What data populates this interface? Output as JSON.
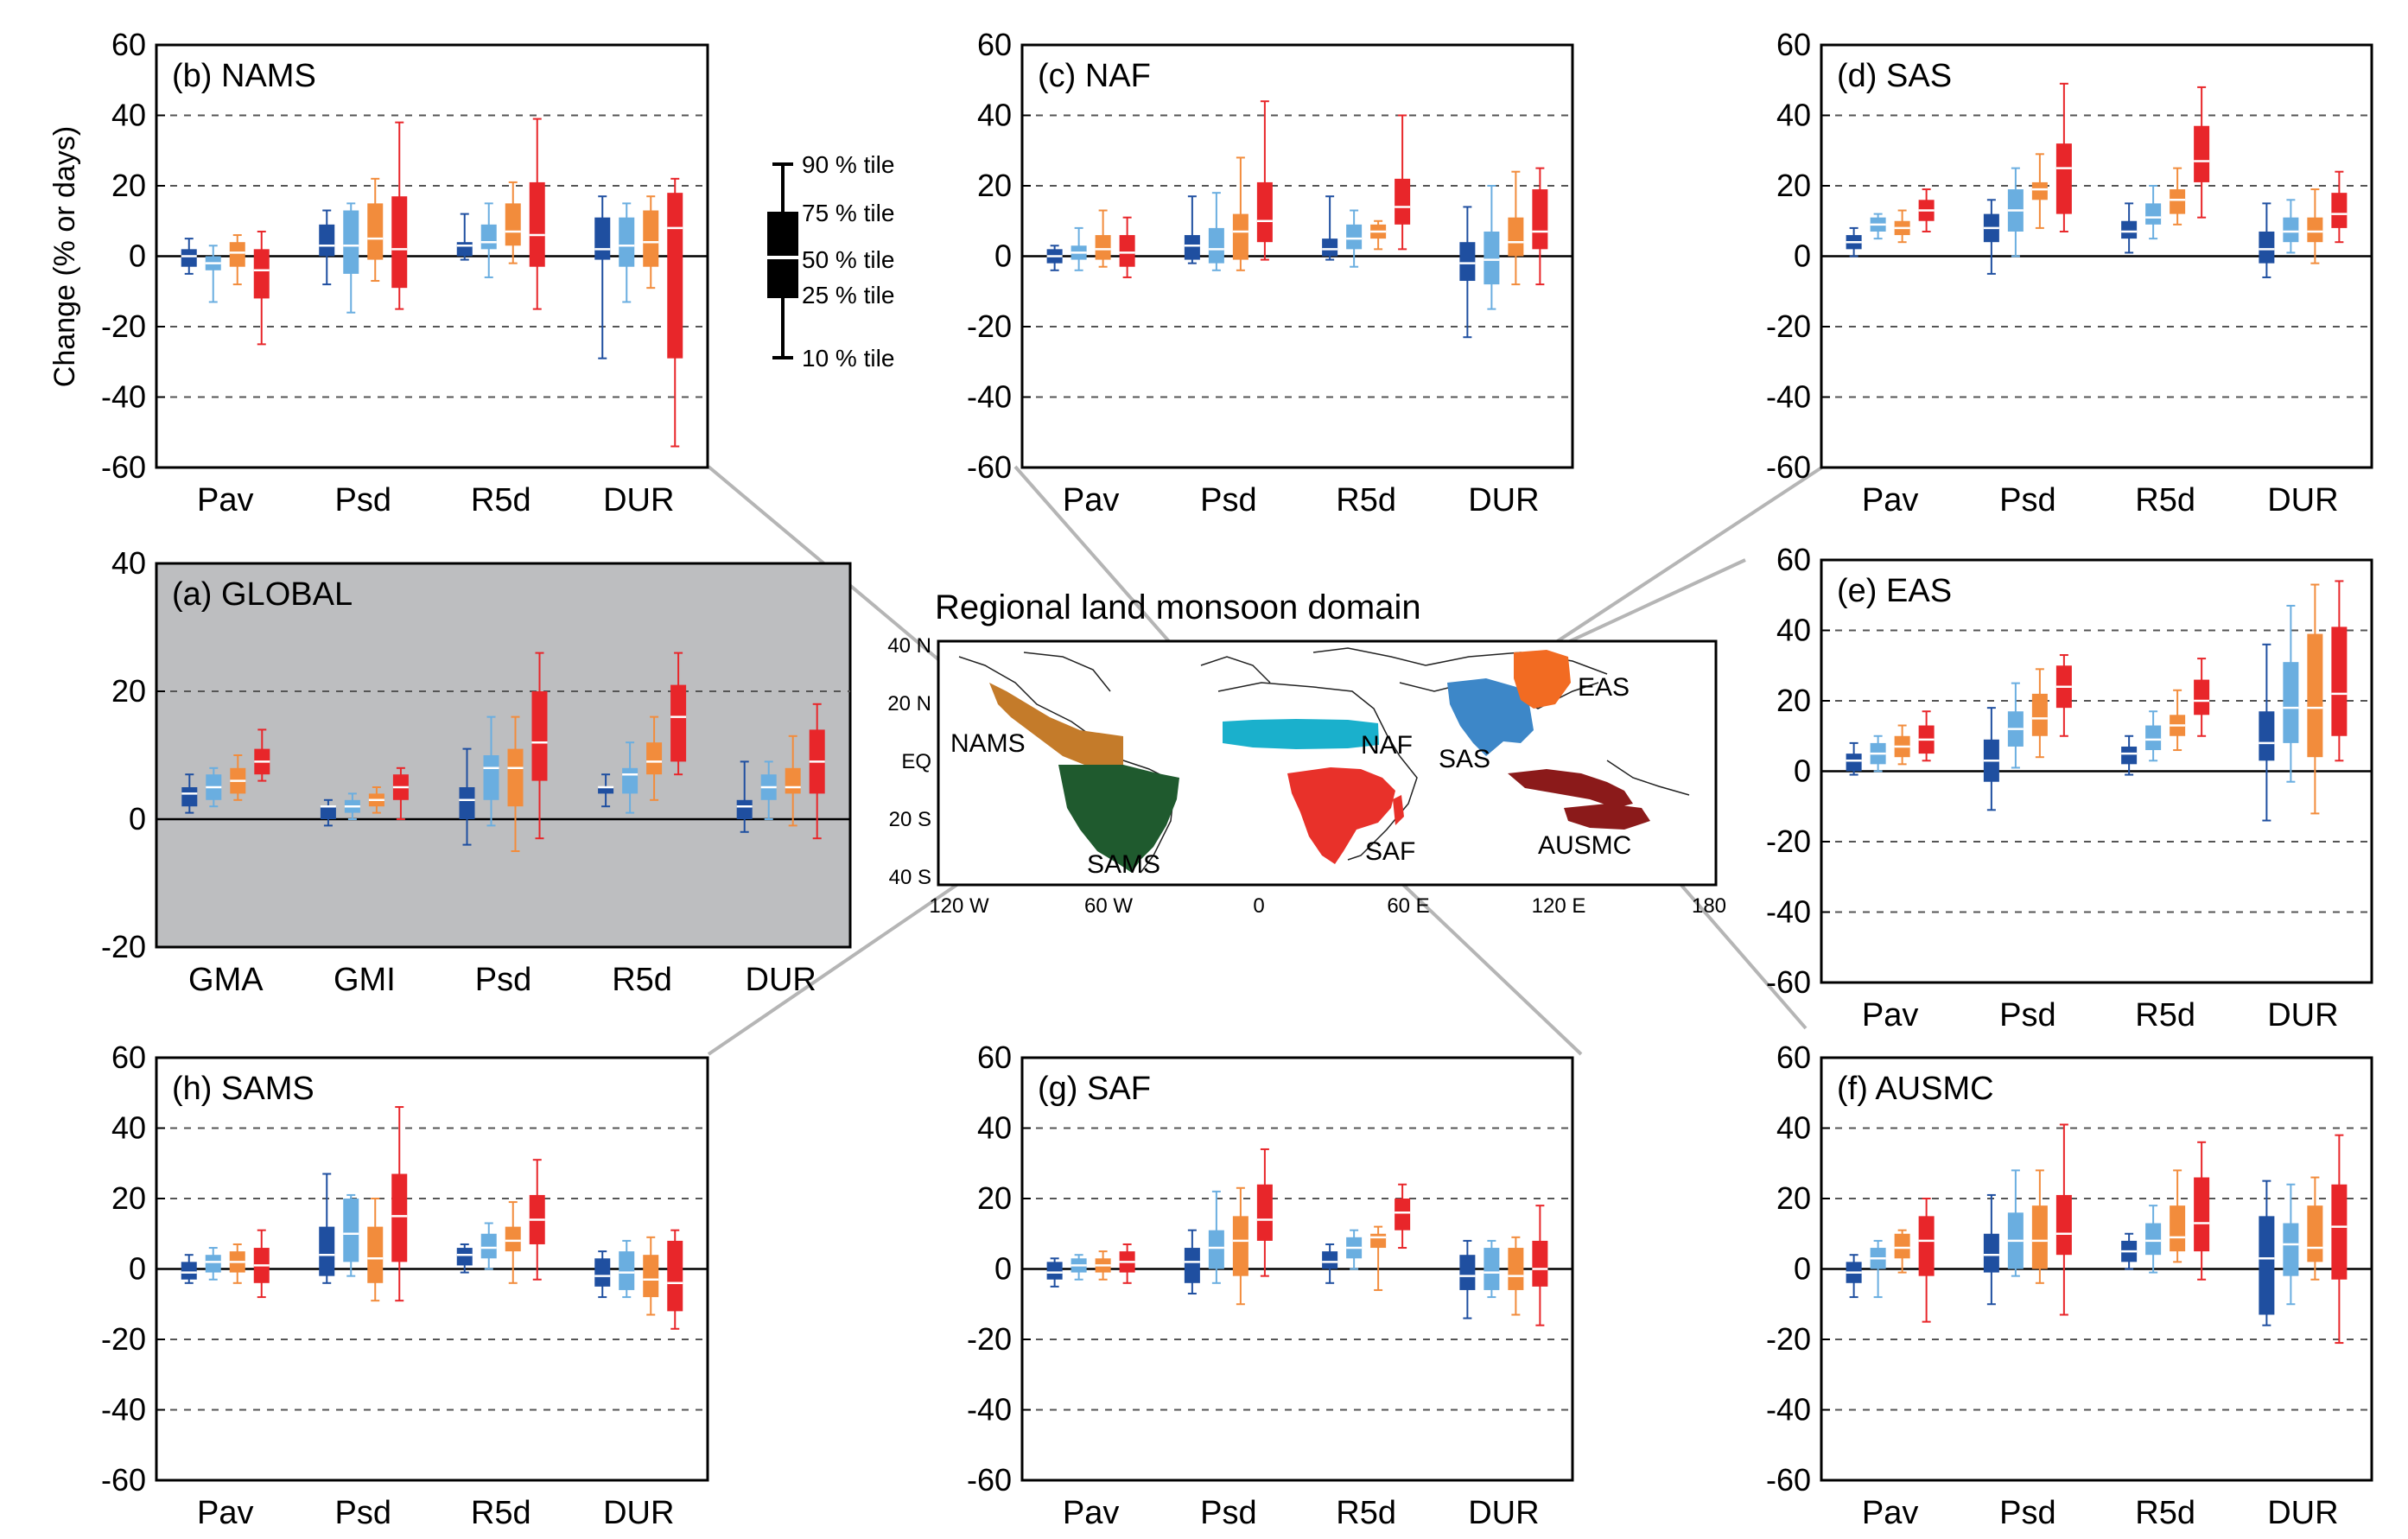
{
  "y_axis_label": "Change (% or days)",
  "map": {
    "title": "Regional land monsoon domain",
    "lat_labels": [
      "40 N",
      "20 N",
      "EQ",
      "20 S",
      "40 S"
    ],
    "lon_labels": [
      "120 W",
      "60 W",
      "0",
      "60 E",
      "120 E",
      "180"
    ],
    "regions": [
      {
        "label": "NAMS",
        "color": "#c47b2a"
      },
      {
        "label": "SAMS",
        "color": "#1f5a2e"
      },
      {
        "label": "NAF",
        "color": "#1ab0cc"
      },
      {
        "label": "SAF",
        "color": "#e8312a"
      },
      {
        "label": "SAS",
        "color": "#3d87c8"
      },
      {
        "label": "EAS",
        "color": "#f26b22"
      },
      {
        "label": "AUSMC",
        "color": "#8b1a1a"
      }
    ]
  },
  "legend": {
    "labels": [
      "90 % tile",
      "75 % tile",
      "50 % tile",
      "25 % tile",
      "10 % tile"
    ]
  },
  "series_colors": [
    "#1f4fa0",
    "#6aaee0",
    "#f28c3c",
    "#e8262a"
  ],
  "chart_data": [
    {
      "id": "NAMS",
      "type": "box",
      "title": "(b) NAMS",
      "ylim": [
        -60,
        60
      ],
      "yticks": [
        "60",
        "40",
        "20",
        "0",
        "-20",
        "-40",
        "-60"
      ],
      "categories": [
        "Pav",
        "Psd",
        "R5d",
        "DUR"
      ],
      "boxes": [
        [
          [
            -5,
            -3,
            0,
            2,
            5
          ],
          [
            -13,
            -4,
            -2,
            0,
            3
          ],
          [
            -8,
            -3,
            1,
            4,
            6
          ],
          [
            -25,
            -12,
            -4,
            2,
            7
          ]
        ],
        [
          [
            -8,
            0,
            3,
            9,
            13
          ],
          [
            -16,
            -5,
            3,
            13,
            15
          ],
          [
            -7,
            -1,
            5,
            15,
            22
          ],
          [
            -15,
            -9,
            2,
            17,
            38
          ]
        ],
        [
          [
            -1,
            0,
            3,
            4,
            12
          ],
          [
            -6,
            2,
            4,
            9,
            15
          ],
          [
            -2,
            3,
            7,
            15,
            21
          ],
          [
            -15,
            -3,
            6,
            21,
            39
          ]
        ],
        [
          [
            -29,
            -1,
            2,
            11,
            17
          ],
          [
            -13,
            -3,
            3,
            11,
            15
          ],
          [
            -9,
            -3,
            4,
            13,
            17
          ],
          [
            -54,
            -29,
            8,
            18,
            22
          ]
        ]
      ]
    },
    {
      "id": "NAF",
      "type": "box",
      "title": "(c) NAF",
      "ylim": [
        -60,
        60
      ],
      "yticks": [
        "60",
        "40",
        "20",
        "0",
        "-20",
        "-40",
        "-60"
      ],
      "categories": [
        "Pav",
        "Psd",
        "R5d",
        "DUR"
      ],
      "boxes": [
        [
          [
            -4,
            -2,
            0,
            2,
            3
          ],
          [
            -4,
            -1,
            1,
            3,
            8
          ],
          [
            -3,
            -1,
            2,
            6,
            13
          ],
          [
            -6,
            -3,
            1,
            6,
            11
          ]
        ],
        [
          [
            -2,
            -1,
            3,
            6,
            17
          ],
          [
            -4,
            -2,
            2,
            8,
            18
          ],
          [
            -4,
            -1,
            7,
            12,
            28
          ],
          [
            -1,
            4,
            10,
            21,
            44
          ]
        ],
        [
          [
            -1,
            0,
            2,
            5,
            17
          ],
          [
            -3,
            2,
            5,
            9,
            13
          ],
          [
            2,
            5,
            7,
            9,
            10
          ],
          [
            2,
            9,
            14,
            22,
            40
          ]
        ],
        [
          [
            -23,
            -7,
            -2,
            4,
            14
          ],
          [
            -15,
            -8,
            -1,
            7,
            20
          ],
          [
            -8,
            0,
            4,
            11,
            24
          ],
          [
            -8,
            2,
            7,
            19,
            25
          ]
        ]
      ]
    },
    {
      "id": "SAS",
      "type": "box",
      "title": "(d) SAS",
      "ylim": [
        -60,
        60
      ],
      "yticks": [
        "60",
        "40",
        "20",
        "0",
        "-20",
        "-40",
        "-60"
      ],
      "categories": [
        "Pav",
        "Psd",
        "R5d",
        "DUR"
      ],
      "boxes": [
        [
          [
            0,
            2,
            4,
            6,
            8
          ],
          [
            5,
            7,
            9,
            11,
            12
          ],
          [
            4,
            6,
            8,
            10,
            13
          ],
          [
            7,
            10,
            13,
            16,
            19
          ]
        ],
        [
          [
            -5,
            4,
            8,
            12,
            16
          ],
          [
            0,
            7,
            13,
            19,
            25
          ],
          [
            8,
            16,
            19,
            21,
            29
          ],
          [
            7,
            12,
            25,
            32,
            49
          ]
        ],
        [
          [
            1,
            5,
            7,
            10,
            15
          ],
          [
            5,
            9,
            11,
            15,
            20
          ],
          [
            9,
            12,
            16,
            19,
            25
          ],
          [
            11,
            21,
            27,
            37,
            48
          ]
        ],
        [
          [
            -6,
            -2,
            2,
            7,
            15
          ],
          [
            1,
            4,
            7,
            11,
            16
          ],
          [
            -2,
            4,
            7,
            11,
            19
          ],
          [
            4,
            8,
            12,
            18,
            24
          ]
        ]
      ]
    },
    {
      "id": "EAS",
      "type": "box",
      "title": "(e) EAS",
      "ylim": [
        -60,
        60
      ],
      "yticks": [
        "60",
        "40",
        "20",
        "0",
        "-20",
        "-40",
        "-60"
      ],
      "categories": [
        "Pav",
        "Psd",
        "R5d",
        "DUR"
      ],
      "boxes": [
        [
          [
            -1,
            0,
            3,
            5,
            8
          ],
          [
            0,
            2,
            5,
            8,
            10
          ],
          [
            2,
            4,
            7,
            10,
            13
          ],
          [
            3,
            5,
            9,
            13,
            17
          ]
        ],
        [
          [
            -11,
            -3,
            3,
            9,
            18
          ],
          [
            1,
            7,
            12,
            17,
            25
          ],
          [
            4,
            10,
            15,
            22,
            29
          ],
          [
            10,
            18,
            24,
            30,
            33
          ]
        ],
        [
          [
            -1,
            2,
            5,
            7,
            10
          ],
          [
            3,
            6,
            9,
            13,
            17
          ],
          [
            6,
            10,
            13,
            16,
            23
          ],
          [
            10,
            16,
            20,
            26,
            32
          ]
        ],
        [
          [
            -14,
            3,
            8,
            17,
            36
          ],
          [
            -3,
            8,
            18,
            31,
            47
          ],
          [
            -12,
            4,
            18,
            39,
            53
          ],
          [
            3,
            10,
            22,
            41,
            54
          ]
        ]
      ]
    },
    {
      "id": "AUSMC",
      "type": "box",
      "title": "(f) AUSMC",
      "ylim": [
        -60,
        60
      ],
      "yticks": [
        "60",
        "40",
        "20",
        "0",
        "-20",
        "-40",
        "-60"
      ],
      "categories": [
        "Pav",
        "Psd",
        "R5d",
        "DUR"
      ],
      "boxes": [
        [
          [
            -8,
            -4,
            -1,
            2,
            4
          ],
          [
            -8,
            0,
            3,
            6,
            8
          ],
          [
            -1,
            3,
            6,
            10,
            11
          ],
          [
            -15,
            -2,
            8,
            15,
            20
          ]
        ],
        [
          [
            -10,
            -1,
            4,
            10,
            21
          ],
          [
            -2,
            0,
            8,
            16,
            28
          ],
          [
            -4,
            0,
            8,
            18,
            28
          ],
          [
            -13,
            4,
            10,
            21,
            41
          ]
        ],
        [
          [
            0,
            2,
            5,
            8,
            10
          ],
          [
            -1,
            4,
            8,
            13,
            18
          ],
          [
            2,
            5,
            9,
            18,
            28
          ],
          [
            -3,
            5,
            13,
            26,
            36
          ]
        ],
        [
          [
            -16,
            -13,
            3,
            15,
            25
          ],
          [
            -10,
            -2,
            7,
            13,
            24
          ],
          [
            -3,
            2,
            6,
            18,
            26
          ],
          [
            -21,
            -3,
            12,
            24,
            38
          ]
        ]
      ]
    },
    {
      "id": "SAF",
      "type": "box",
      "title": "(g) SAF",
      "ylim": [
        -60,
        60
      ],
      "yticks": [
        "60",
        "40",
        "20",
        "0",
        "-20",
        "-40",
        "-60"
      ],
      "categories": [
        "Pav",
        "Psd",
        "R5d",
        "DUR"
      ],
      "boxes": [
        [
          [
            -5,
            -3,
            -1,
            2,
            3
          ],
          [
            -3,
            -1,
            1,
            3,
            4
          ],
          [
            -3,
            -1,
            1,
            3,
            5
          ],
          [
            -4,
            -1,
            2,
            5,
            7
          ]
        ],
        [
          [
            -7,
            -4,
            2,
            6,
            11
          ],
          [
            -4,
            0,
            6,
            11,
            22
          ],
          [
            -10,
            -2,
            8,
            15,
            23
          ],
          [
            -2,
            8,
            14,
            24,
            34
          ]
        ],
        [
          [
            -4,
            0,
            2,
            5,
            7
          ],
          [
            0,
            3,
            6,
            9,
            11
          ],
          [
            -6,
            6,
            9,
            10,
            12
          ],
          [
            6,
            11,
            16,
            20,
            24
          ]
        ],
        [
          [
            -14,
            -6,
            -2,
            4,
            8
          ],
          [
            -8,
            -6,
            -1,
            6,
            8
          ],
          [
            -13,
            -6,
            -2,
            6,
            9
          ],
          [
            -16,
            -5,
            0,
            8,
            18
          ]
        ]
      ]
    },
    {
      "id": "SAMS",
      "type": "box",
      "title": "(h) SAMS",
      "ylim": [
        -60,
        60
      ],
      "yticks": [
        "60",
        "40",
        "20",
        "0",
        "-20",
        "-40",
        "-60"
      ],
      "categories": [
        "Pav",
        "Psd",
        "R5d",
        "DUR"
      ],
      "boxes": [
        [
          [
            -4,
            -3,
            -1,
            2,
            4
          ],
          [
            -3,
            -1,
            2,
            4,
            6
          ],
          [
            -4,
            -1,
            2,
            5,
            7
          ],
          [
            -8,
            -4,
            1,
            6,
            11
          ]
        ],
        [
          [
            -4,
            -2,
            4,
            12,
            27
          ],
          [
            -2,
            2,
            10,
            20,
            21
          ],
          [
            -9,
            -4,
            3,
            12,
            20
          ],
          [
            -9,
            2,
            15,
            27,
            46
          ]
        ],
        [
          [
            -1,
            1,
            4,
            6,
            7
          ],
          [
            0,
            3,
            6,
            10,
            13
          ],
          [
            -4,
            5,
            8,
            12,
            19
          ],
          [
            -3,
            7,
            14,
            21,
            31
          ]
        ],
        [
          [
            -8,
            -5,
            -2,
            3,
            5
          ],
          [
            -8,
            -6,
            -1,
            5,
            8
          ],
          [
            -13,
            -8,
            -3,
            4,
            9
          ],
          [
            -17,
            -12,
            -4,
            8,
            11
          ]
        ]
      ]
    },
    {
      "id": "GLOBAL",
      "type": "box",
      "title": "(a) GLOBAL",
      "ylim": [
        -20,
        40
      ],
      "yticks": [
        "40",
        "20",
        "0",
        "-20"
      ],
      "categories": [
        "GMA",
        "GMI",
        "Psd",
        "R5d",
        "DUR"
      ],
      "boxes": [
        [
          [
            1,
            2,
            4,
            5,
            7
          ],
          [
            2,
            3,
            5,
            7,
            8
          ],
          [
            3,
            4,
            6,
            8,
            10
          ],
          [
            6,
            7,
            9,
            11,
            14
          ]
        ],
        [
          [
            -1,
            0,
            2,
            2,
            3
          ],
          [
            0,
            1,
            2,
            3,
            4
          ],
          [
            1,
            2,
            3,
            4,
            5
          ],
          [
            0,
            3,
            5,
            7,
            8
          ]
        ],
        [
          [
            -4,
            0,
            3,
            5,
            11
          ],
          [
            -1,
            3,
            8,
            10,
            16
          ],
          [
            -5,
            2,
            8,
            11,
            16
          ],
          [
            -3,
            6,
            12,
            20,
            26
          ]
        ],
        [
          [
            2,
            4,
            5,
            5,
            7
          ],
          [
            1,
            4,
            7,
            8,
            12
          ],
          [
            3,
            7,
            9,
            12,
            16
          ],
          [
            7,
            9,
            16,
            21,
            26
          ]
        ],
        [
          [
            -2,
            0,
            2,
            3,
            9
          ],
          [
            0,
            3,
            5,
            7,
            9
          ],
          [
            -1,
            4,
            5,
            8,
            13
          ],
          [
            -3,
            4,
            9,
            14,
            18
          ]
        ]
      ]
    }
  ]
}
